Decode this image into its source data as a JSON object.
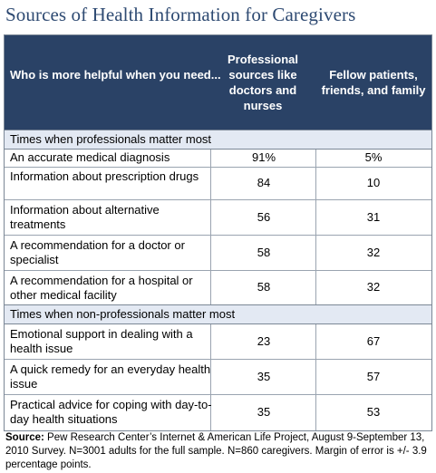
{
  "title": "Sources of Health Information for Caregivers",
  "header": {
    "question": "Who is more helpful when you need...",
    "col1": "Professional sources like doctors and nurses",
    "col2": "Fellow patients, friends, and family"
  },
  "sections": [
    {
      "label": "Times when professionals matter most",
      "rows": [
        {
          "label": "An accurate medical diagnosis",
          "pro": "91%",
          "peer": "5%"
        },
        {
          "label": "Information about prescription drugs",
          "pro": "84",
          "peer": "10"
        },
        {
          "label": "Information about alternative treatments",
          "pro": "56",
          "peer": "31"
        },
        {
          "label": "A recommendation for a doctor or specialist",
          "pro": "58",
          "peer": "32"
        },
        {
          "label": "A recommendation for a hospital or other medical facility",
          "pro": "58",
          "peer": "32"
        }
      ]
    },
    {
      "label": "Times when non-professionals matter most",
      "rows": [
        {
          "label": "Emotional support in dealing with a health issue",
          "pro": "23",
          "peer": "67"
        },
        {
          "label": "A quick remedy for an everyday health issue",
          "pro": "35",
          "peer": "57"
        },
        {
          "label": "Practical advice for coping with day-to-day health situations",
          "pro": "35",
          "peer": "53"
        }
      ]
    }
  ],
  "source": {
    "prefix": "Source:",
    "text": "Pew Research Center’s Internet & American Life Project, August 9-September 13, 2010 Survey. N=3001 adults for the full sample. N=860 caregivers. Margin of error is +/- 3.9 percentage points."
  },
  "colors": {
    "title": "#2e4a72",
    "header_bg": "#2a4266",
    "section_bg": "#e3e9f3"
  }
}
